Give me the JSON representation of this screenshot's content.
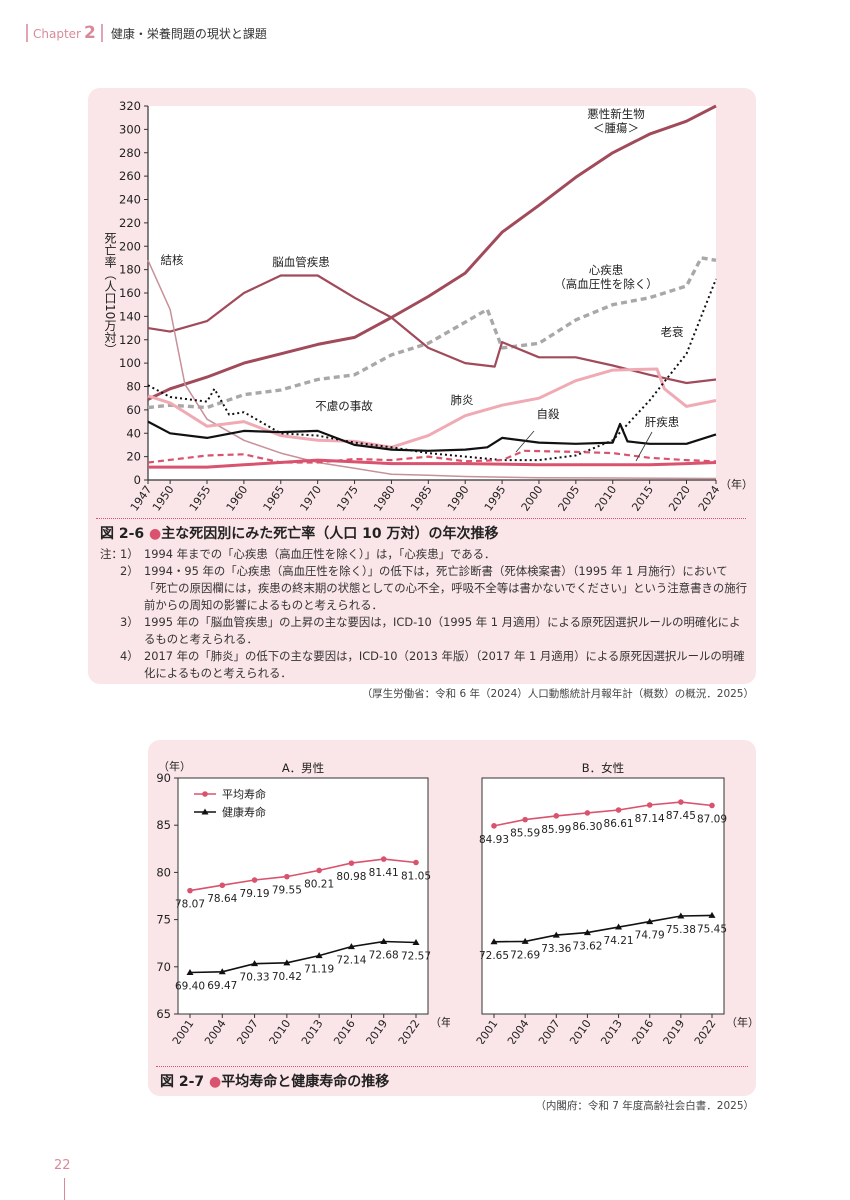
{
  "header": {
    "chapter_label": "Chapter",
    "chapter_number": "2",
    "title": "健康・栄養問題の現状と課題"
  },
  "figure1": {
    "number": "図 2-6",
    "title": "主な死因別にみた死亡率（人口 10 万対）の年次推移",
    "notes_lead": "注：",
    "notes": [
      {
        "num": "1）",
        "text": "1994 年までの「心疾患（高血圧性を除く）」は，「心疾患」である．"
      },
      {
        "num": "2）",
        "text": "1994・95 年の「心疾患（高血圧性を除く）」の低下は，死亡診断書（死体検案書）（1995 年 1 月施行）において「死亡の原因欄には，疾患の終末期の状態としての心不全，呼吸不全等は書かないでください」という注意書きの施行前からの周知の影響によるものと考えられる．"
      },
      {
        "num": "3）",
        "text": "1995 年の「脳血管疾患」の上昇の主な要因は，ICD-10（1995 年 1 月適用）による原死因選択ルールの明確化によるものと考えられる．"
      },
      {
        "num": "4）",
        "text": "2017 年の「肺炎」の低下の主な要因は，ICD-10（2013 年版）（2017 年 1 月適用）による原死因選択ルールの明確化によるものと考えられる．"
      }
    ],
    "source": "（厚生労働省：令和 6 年（2024）人口動態統計月報年計（概数）の概況．2025）"
  },
  "figure2": {
    "number": "図 2-7",
    "title": "平均寿命と健康寿命の推移",
    "source": "（内閣府：令和 7 年度高齢社会白書．2025）"
  },
  "page_number": "22",
  "chart_data": [
    {
      "type": "line",
      "title": "主な死因別にみた死亡率（人口 10 万対）の年次推移",
      "ylabel": "死亡率（人口10万対）",
      "xlabel": "（年）",
      "ylim": [
        0,
        320
      ],
      "xlim": [
        1947,
        2024
      ],
      "y_ticks": [
        0,
        20,
        40,
        60,
        80,
        100,
        120,
        140,
        160,
        180,
        200,
        220,
        240,
        260,
        280,
        300,
        320
      ],
      "x_ticks": [
        1947,
        1950,
        1955,
        1960,
        1965,
        1970,
        1975,
        1980,
        1985,
        1990,
        1995,
        2000,
        2005,
        2010,
        2015,
        2020,
        2024
      ],
      "series": [
        {
          "name": "悪性新生物＜腫瘍＞",
          "label_lines": [
            "悪性新生物",
            "＜腫瘍＞"
          ],
          "color": "#a04a5a",
          "style": "solid-thick",
          "points": [
            [
              1947,
              69
            ],
            [
              1950,
              78
            ],
            [
              1955,
              88
            ],
            [
              1960,
              100
            ],
            [
              1965,
              108
            ],
            [
              1970,
              116
            ],
            [
              1975,
              122
            ],
            [
              1980,
              139
            ],
            [
              1985,
              157
            ],
            [
              1990,
              177
            ],
            [
              1995,
              212
            ],
            [
              2000,
              235
            ],
            [
              2005,
              259
            ],
            [
              2010,
              280
            ],
            [
              2015,
              296
            ],
            [
              2020,
              307
            ],
            [
              2024,
              320
            ]
          ]
        },
        {
          "name": "心疾患（高血圧性を除く）",
          "label_lines": [
            "心疾患",
            "（高血圧性を除く）"
          ],
          "color": "#a8a8a8",
          "style": "dashed-thick",
          "points": [
            [
              1947,
              62
            ],
            [
              1950,
              64
            ],
            [
              1955,
              62
            ],
            [
              1960,
              73
            ],
            [
              1965,
              77
            ],
            [
              1970,
              86
            ],
            [
              1975,
              90
            ],
            [
              1980,
              107
            ],
            [
              1985,
              117
            ],
            [
              1990,
              135
            ],
            [
              1993,
              146
            ],
            [
              1995,
              113
            ],
            [
              2000,
              117
            ],
            [
              2005,
              137
            ],
            [
              2010,
              150
            ],
            [
              2015,
              156
            ],
            [
              2020,
              166
            ],
            [
              2022,
              190
            ],
            [
              2024,
              188
            ]
          ]
        },
        {
          "name": "脳血管疾患",
          "label_lines": [
            "脳血管疾患"
          ],
          "color": "#a04a5a",
          "style": "solid",
          "points": [
            [
              1947,
              130
            ],
            [
              1950,
              127
            ],
            [
              1955,
              136
            ],
            [
              1960,
              160
            ],
            [
              1965,
              175
            ],
            [
              1970,
              175
            ],
            [
              1975,
              156
            ],
            [
              1980,
              139
            ],
            [
              1985,
              113
            ],
            [
              1990,
              100
            ],
            [
              1994,
              97
            ],
            [
              1995,
              118
            ],
            [
              2000,
              105
            ],
            [
              2005,
              105
            ],
            [
              2010,
              98
            ],
            [
              2015,
              90
            ],
            [
              2020,
              83
            ],
            [
              2024,
              86
            ]
          ]
        },
        {
          "name": "結核",
          "label_lines": [
            "結核"
          ],
          "color": "#c89098",
          "style": "solid-thin",
          "points": [
            [
              1947,
              188
            ],
            [
              1950,
              146
            ],
            [
              1952,
              82
            ],
            [
              1955,
              52
            ],
            [
              1960,
              34
            ],
            [
              1965,
              23
            ],
            [
              1970,
              15
            ],
            [
              1975,
              10
            ],
            [
              1980,
              5
            ],
            [
              1985,
              4
            ],
            [
              1990,
              3
            ],
            [
              2000,
              2
            ],
            [
              2010,
              1.7
            ],
            [
              2024,
              1.3
            ]
          ]
        },
        {
          "name": "肺炎",
          "label_lines": [
            "肺炎"
          ],
          "color": "#f0aab4",
          "style": "solid-thick",
          "points": [
            [
              1947,
              72
            ],
            [
              1950,
              66
            ],
            [
              1955,
              46
            ],
            [
              1960,
              50
            ],
            [
              1965,
              38
            ],
            [
              1970,
              34
            ],
            [
              1975,
              33
            ],
            [
              1980,
              28
            ],
            [
              1985,
              38
            ],
            [
              1990,
              55
            ],
            [
              1995,
              64
            ],
            [
              2000,
              70
            ],
            [
              2005,
              85
            ],
            [
              2010,
              94
            ],
            [
              2016,
              95
            ],
            [
              2017,
              78
            ],
            [
              2020,
              63
            ],
            [
              2024,
              68
            ]
          ]
        },
        {
          "name": "老衰",
          "label_lines": [
            "老衰"
          ],
          "color": "#111111",
          "style": "dotted",
          "points": [
            [
              1947,
              81
            ],
            [
              1950,
              71
            ],
            [
              1955,
              67
            ],
            [
              1956,
              78
            ],
            [
              1958,
              56
            ],
            [
              1960,
              58
            ],
            [
              1965,
              40
            ],
            [
              1970,
              38
            ],
            [
              1975,
              32
            ],
            [
              1980,
              28
            ],
            [
              1985,
              23
            ],
            [
              1990,
              20
            ],
            [
              1995,
              17
            ],
            [
              2000,
              17
            ],
            [
              2005,
              21
            ],
            [
              2010,
              34
            ],
            [
              2015,
              68
            ],
            [
              2020,
              108
            ],
            [
              2024,
              172
            ]
          ]
        },
        {
          "name": "不慮の事故",
          "label_lines": [
            "不慮の事故"
          ],
          "color": "#111111",
          "style": "solid",
          "points": [
            [
              1947,
              50
            ],
            [
              1950,
              40
            ],
            [
              1955,
              36
            ],
            [
              1960,
              42
            ],
            [
              1965,
              41
            ],
            [
              1970,
              42
            ],
            [
              1975,
              30
            ],
            [
              1980,
              26
            ],
            [
              1985,
              25
            ],
            [
              1990,
              26
            ],
            [
              1993,
              28
            ],
            [
              1995,
              36
            ],
            [
              2000,
              32
            ],
            [
              2005,
              31
            ],
            [
              2010,
              32
            ],
            [
              2011,
              48
            ],
            [
              2012,
              33
            ],
            [
              2015,
              31
            ],
            [
              2020,
              31
            ],
            [
              2024,
              39
            ]
          ]
        },
        {
          "name": "自殺",
          "label_lines": [
            "自殺"
          ],
          "color": "#d9526e",
          "style": "dashed",
          "points": [
            [
              1947,
              15
            ],
            [
              1955,
              21
            ],
            [
              1960,
              22
            ],
            [
              1965,
              15
            ],
            [
              1970,
              15
            ],
            [
              1975,
              18
            ],
            [
              1980,
              17
            ],
            [
              1985,
              20
            ],
            [
              1990,
              16
            ],
            [
              1995,
              17
            ],
            [
              1998,
              25
            ],
            [
              2005,
              24
            ],
            [
              2010,
              23
            ],
            [
              2015,
              19
            ],
            [
              2020,
              17
            ],
            [
              2024,
              16
            ]
          ]
        },
        {
          "name": "肝疾患",
          "label_lines": [
            "肝疾患"
          ],
          "color": "#d9526e",
          "style": "solid-thick",
          "points": [
            [
              1947,
              11
            ],
            [
              1955,
              11
            ],
            [
              1960,
              13
            ],
            [
              1970,
              17
            ],
            [
              1980,
              14
            ],
            [
              1990,
              14
            ],
            [
              2000,
              13
            ],
            [
              2010,
              13
            ],
            [
              2015,
              13
            ],
            [
              2020,
              14
            ],
            [
              2024,
              15
            ]
          ]
        }
      ]
    },
    {
      "type": "line",
      "title": "A．男性",
      "ylabel": "（年）",
      "xlabel": "（年）",
      "ylim": [
        65,
        90
      ],
      "y_ticks": [
        65,
        70,
        75,
        80,
        85,
        90
      ],
      "categories": [
        "2001",
        "2004",
        "2007",
        "2010",
        "2013",
        "2016",
        "2019",
        "2022"
      ],
      "legend": [
        "平均寿命",
        "健康寿命"
      ],
      "series": [
        {
          "name": "平均寿命",
          "color": "#d9526e",
          "marker": "circle",
          "values": [
            78.07,
            78.64,
            79.19,
            79.55,
            80.21,
            80.98,
            81.41,
            81.05
          ]
        },
        {
          "name": "健康寿命",
          "color": "#111111",
          "marker": "triangle",
          "values": [
            69.4,
            69.47,
            70.33,
            70.42,
            71.19,
            72.14,
            72.68,
            72.57
          ]
        }
      ]
    },
    {
      "type": "line",
      "title": "B．女性",
      "xlabel": "（年）",
      "ylim": [
        65,
        90
      ],
      "categories": [
        "2001",
        "2004",
        "2007",
        "2010",
        "2013",
        "2016",
        "2019",
        "2022"
      ],
      "series": [
        {
          "name": "平均寿命",
          "color": "#d9526e",
          "marker": "circle",
          "values": [
            84.93,
            85.59,
            85.99,
            86.3,
            86.61,
            87.14,
            87.45,
            87.09
          ]
        },
        {
          "name": "健康寿命",
          "color": "#111111",
          "marker": "triangle",
          "values": [
            72.65,
            72.69,
            73.36,
            73.62,
            74.21,
            74.79,
            75.38,
            75.45
          ]
        }
      ]
    }
  ]
}
